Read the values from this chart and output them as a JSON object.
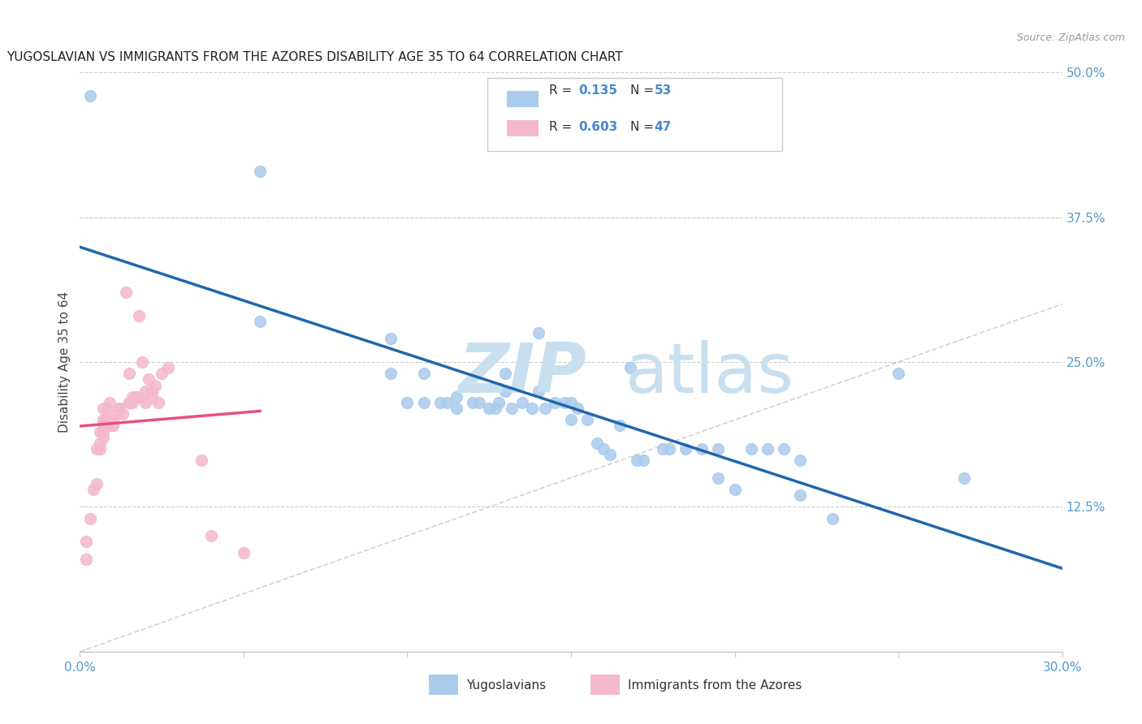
{
  "title": "YUGOSLAVIAN VS IMMIGRANTS FROM THE AZORES DISABILITY AGE 35 TO 64 CORRELATION CHART",
  "source": "Source: ZipAtlas.com",
  "ylabel": "Disability Age 35 to 64",
  "xlim": [
    0.0,
    0.3
  ],
  "ylim": [
    0.0,
    0.5
  ],
  "xtick_vals": [
    0.0,
    0.05,
    0.1,
    0.15,
    0.2,
    0.25,
    0.3
  ],
  "xtick_labels": [
    "0.0%",
    "",
    "",
    "",
    "",
    "",
    "30.0%"
  ],
  "ytick_vals_right": [
    0.125,
    0.25,
    0.375,
    0.5
  ],
  "ytick_labels_right": [
    "12.5%",
    "25.0%",
    "37.5%",
    "50.0%"
  ],
  "blue_color": "#aacbec",
  "pink_color": "#f4b8cc",
  "blue_line_color": "#2166ac",
  "pink_line_color": "#e8507a",
  "diag_line_color": "#c0c0c0",
  "yug_scatter": [
    [
      0.003,
      0.48
    ],
    [
      0.055,
      0.415
    ],
    [
      0.055,
      0.285
    ],
    [
      0.095,
      0.27
    ],
    [
      0.095,
      0.24
    ],
    [
      0.1,
      0.215
    ],
    [
      0.105,
      0.24
    ],
    [
      0.105,
      0.215
    ],
    [
      0.11,
      0.215
    ],
    [
      0.112,
      0.215
    ],
    [
      0.115,
      0.22
    ],
    [
      0.115,
      0.21
    ],
    [
      0.12,
      0.215
    ],
    [
      0.122,
      0.215
    ],
    [
      0.125,
      0.21
    ],
    [
      0.127,
      0.21
    ],
    [
      0.128,
      0.215
    ],
    [
      0.13,
      0.24
    ],
    [
      0.13,
      0.225
    ],
    [
      0.132,
      0.21
    ],
    [
      0.135,
      0.215
    ],
    [
      0.138,
      0.21
    ],
    [
      0.14,
      0.275
    ],
    [
      0.14,
      0.225
    ],
    [
      0.142,
      0.21
    ],
    [
      0.145,
      0.215
    ],
    [
      0.148,
      0.215
    ],
    [
      0.15,
      0.215
    ],
    [
      0.15,
      0.2
    ],
    [
      0.152,
      0.21
    ],
    [
      0.155,
      0.2
    ],
    [
      0.158,
      0.18
    ],
    [
      0.16,
      0.175
    ],
    [
      0.162,
      0.17
    ],
    [
      0.165,
      0.195
    ],
    [
      0.168,
      0.245
    ],
    [
      0.17,
      0.165
    ],
    [
      0.172,
      0.165
    ],
    [
      0.178,
      0.175
    ],
    [
      0.18,
      0.175
    ],
    [
      0.185,
      0.175
    ],
    [
      0.19,
      0.175
    ],
    [
      0.195,
      0.175
    ],
    [
      0.195,
      0.15
    ],
    [
      0.2,
      0.14
    ],
    [
      0.205,
      0.175
    ],
    [
      0.21,
      0.175
    ],
    [
      0.215,
      0.175
    ],
    [
      0.22,
      0.135
    ],
    [
      0.22,
      0.165
    ],
    [
      0.23,
      0.115
    ],
    [
      0.25,
      0.24
    ],
    [
      0.27,
      0.15
    ]
  ],
  "azores_scatter": [
    [
      0.002,
      0.095
    ],
    [
      0.002,
      0.08
    ],
    [
      0.003,
      0.115
    ],
    [
      0.004,
      0.14
    ],
    [
      0.005,
      0.145
    ],
    [
      0.005,
      0.175
    ],
    [
      0.006,
      0.19
    ],
    [
      0.006,
      0.175
    ],
    [
      0.006,
      0.18
    ],
    [
      0.007,
      0.185
    ],
    [
      0.007,
      0.195
    ],
    [
      0.007,
      0.19
    ],
    [
      0.007,
      0.2
    ],
    [
      0.007,
      0.21
    ],
    [
      0.008,
      0.2
    ],
    [
      0.008,
      0.21
    ],
    [
      0.009,
      0.195
    ],
    [
      0.009,
      0.215
    ],
    [
      0.01,
      0.2
    ],
    [
      0.01,
      0.195
    ],
    [
      0.01,
      0.195
    ],
    [
      0.011,
      0.205
    ],
    [
      0.012,
      0.21
    ],
    [
      0.012,
      0.21
    ],
    [
      0.013,
      0.205
    ],
    [
      0.014,
      0.31
    ],
    [
      0.015,
      0.24
    ],
    [
      0.015,
      0.215
    ],
    [
      0.015,
      0.215
    ],
    [
      0.016,
      0.22
    ],
    [
      0.016,
      0.215
    ],
    [
      0.017,
      0.22
    ],
    [
      0.018,
      0.22
    ],
    [
      0.018,
      0.29
    ],
    [
      0.019,
      0.25
    ],
    [
      0.02,
      0.215
    ],
    [
      0.02,
      0.225
    ],
    [
      0.021,
      0.235
    ],
    [
      0.022,
      0.225
    ],
    [
      0.022,
      0.22
    ],
    [
      0.023,
      0.23
    ],
    [
      0.024,
      0.215
    ],
    [
      0.025,
      0.24
    ],
    [
      0.027,
      0.245
    ],
    [
      0.037,
      0.165
    ],
    [
      0.04,
      0.1
    ],
    [
      0.05,
      0.085
    ]
  ]
}
